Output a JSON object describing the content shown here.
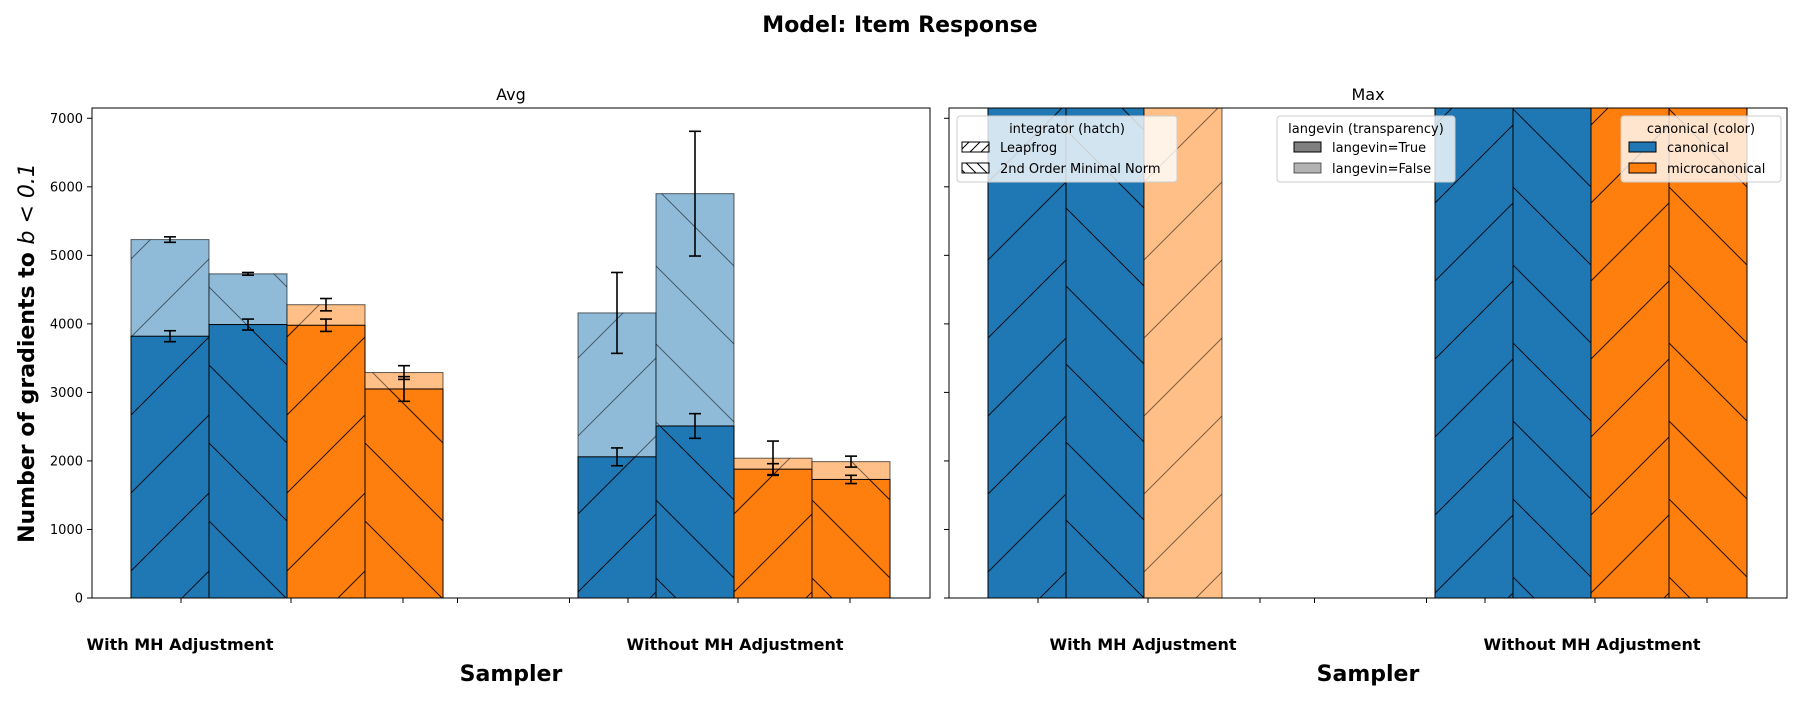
{
  "title": "Model: Item Response",
  "colors": {
    "canonical": "#1f77b4",
    "microcanonical": "#ff7f0e",
    "edge": "#000000",
    "errorbar": "#000000"
  },
  "legends": {
    "integrator": {
      "title": "integrator (hatch)",
      "entries": [
        "Leapfrog",
        "2nd Order Minimal Norm"
      ]
    },
    "langevin": {
      "title": "langevin (transparency)",
      "entries": [
        "langevin=True",
        "langevin=False"
      ]
    },
    "canonical": {
      "title": "canonical (color)",
      "entries": [
        "canonical",
        "microcanonical"
      ]
    }
  },
  "chart_data": [
    {
      "type": "bar",
      "title": "Avg",
      "xlabel": "Sampler",
      "ylabel": "Number of gradients to $b < 0.1$",
      "categories": [
        "With MH Adjustment",
        "Without MH Adjustment"
      ],
      "ylim": [
        0,
        7150
      ],
      "yticks": [
        0,
        1000,
        2000,
        3000,
        4000,
        5000,
        6000,
        7000
      ],
      "series": [
        {
          "canonical": "canonical",
          "integrator": "Leapfrog",
          "langevin_true": [
            3820,
            2060
          ],
          "langevin_false": [
            5230,
            4160
          ],
          "err_true": [
            80,
            130
          ],
          "err_false": [
            40,
            590
          ]
        },
        {
          "canonical": "canonical",
          "integrator": "2nd Order Minimal Norm",
          "langevin_true": [
            3990,
            2510
          ],
          "langevin_false": [
            4730,
            5900
          ],
          "err_true": [
            80,
            180
          ],
          "err_false": [
            20,
            910
          ]
        },
        {
          "canonical": "microcanonical",
          "integrator": "Leapfrog",
          "langevin_true": [
            3980,
            1880
          ],
          "langevin_false": [
            4280,
            2040
          ],
          "err_true": [
            90,
            80
          ],
          "err_false": [
            90,
            250
          ]
        },
        {
          "canonical": "microcanonical",
          "integrator": "2nd Order Minimal Norm",
          "langevin_true": [
            3050,
            1730
          ],
          "langevin_false": [
            3290,
            1990
          ],
          "err_true": [
            180,
            60
          ],
          "err_false": [
            100,
            80
          ]
        }
      ]
    },
    {
      "type": "bar",
      "title": "Max",
      "xlabel": "Sampler",
      "ylabel": "",
      "categories": [
        "With MH Adjustment",
        "Without MH Adjustment"
      ],
      "ylim": [
        0,
        7150
      ],
      "series": [
        {
          "canonical": "canonical",
          "integrator": "Leapfrog",
          "langevin_true": [
            8000,
            8000
          ],
          "langevin_false": [
            8000,
            8000
          ]
        },
        {
          "canonical": "canonical",
          "integrator": "2nd Order Minimal Norm",
          "langevin_true": [
            8000,
            8000
          ],
          "langevin_false": [
            8000,
            8000
          ]
        },
        {
          "canonical": "microcanonical",
          "integrator": "Leapfrog",
          "langevin_true": [
            null,
            8000
          ],
          "langevin_false": [
            8000,
            8000
          ]
        },
        {
          "canonical": "microcanonical",
          "integrator": "2nd Order Minimal Norm",
          "langevin_true": [
            null,
            8000
          ],
          "langevin_false": [
            null,
            8000
          ]
        }
      ]
    }
  ]
}
